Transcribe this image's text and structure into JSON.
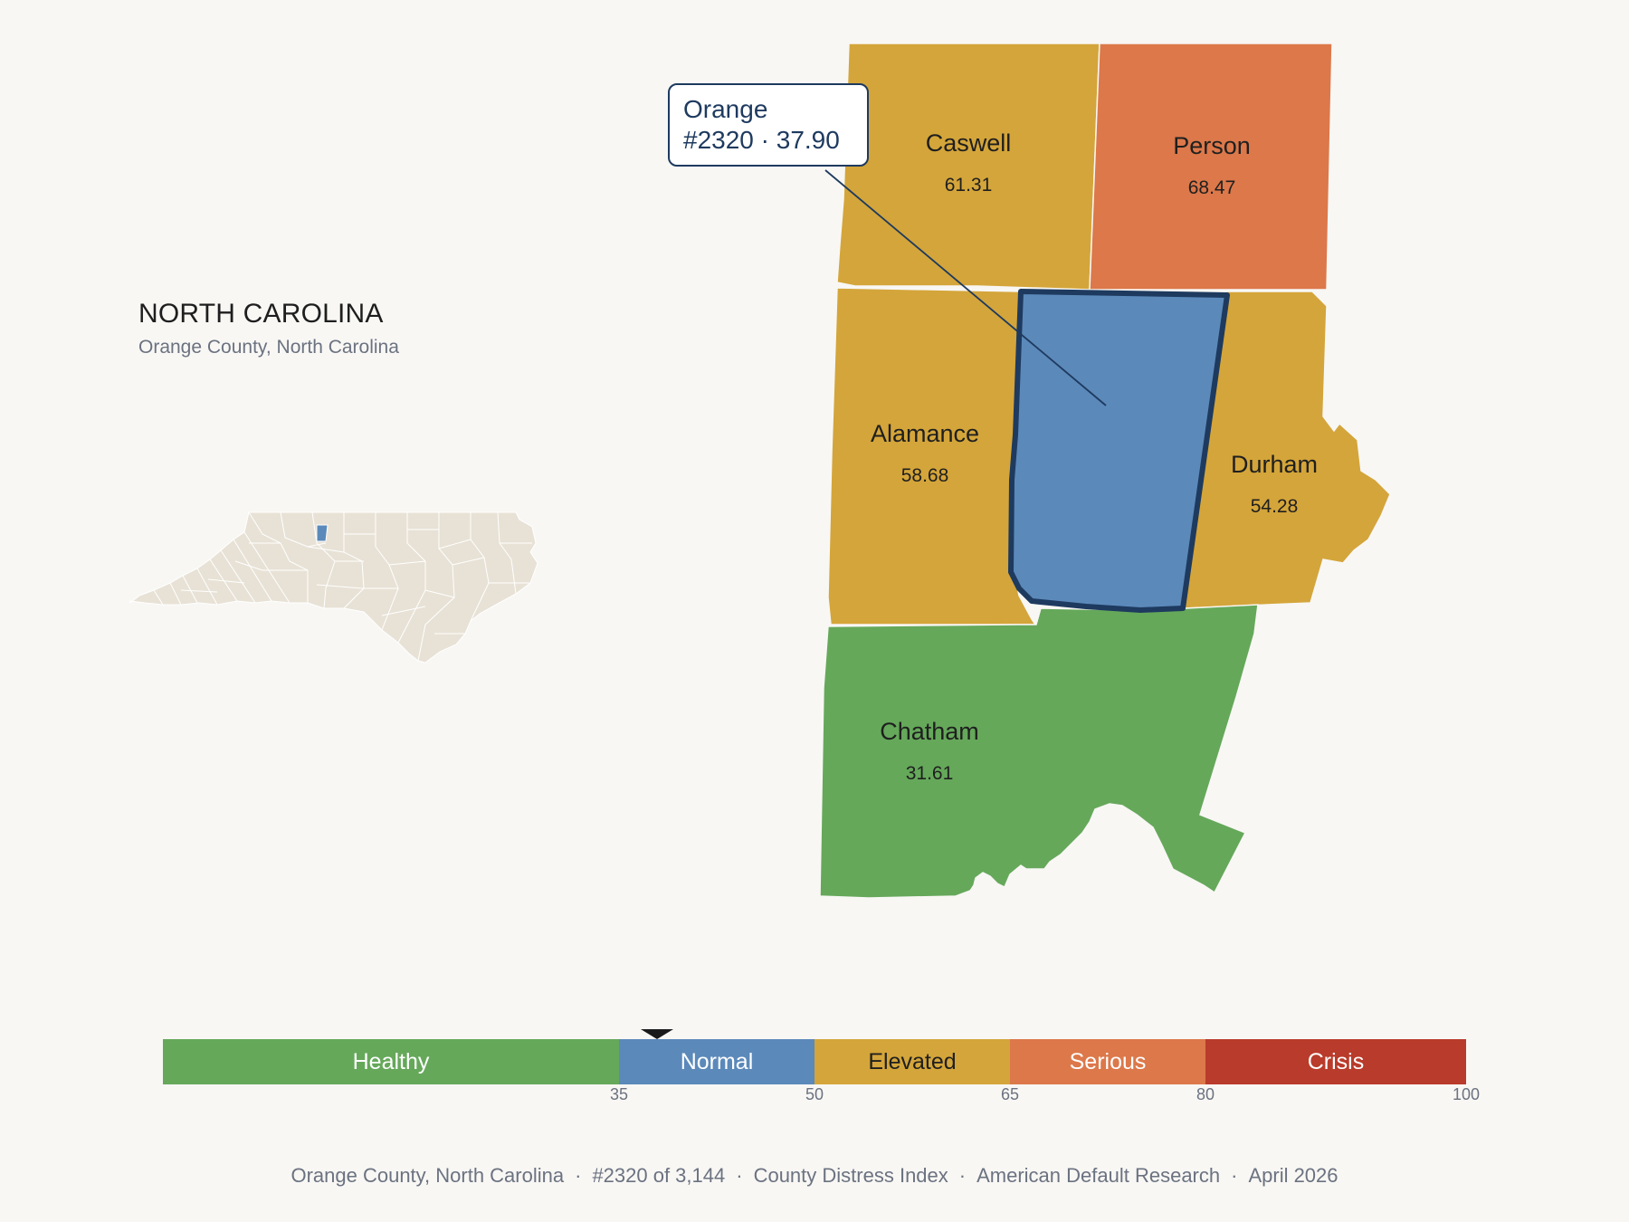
{
  "header": {
    "state_title": "NORTH CAROLINA",
    "subtitle": "Orange County, North Carolina"
  },
  "callout": {
    "name": "Orange",
    "detail": "#2320 · 37.90"
  },
  "counties": [
    {
      "name": "Caswell",
      "value": "61.31",
      "category": "Elevated"
    },
    {
      "name": "Person",
      "value": "68.47",
      "category": "Serious"
    },
    {
      "name": "Alamance",
      "value": "58.68",
      "category": "Elevated"
    },
    {
      "name": "Orange",
      "value": "37.90",
      "category": "Normal",
      "highlighted": true
    },
    {
      "name": "Durham",
      "value": "54.28",
      "category": "Elevated"
    },
    {
      "name": "Chatham",
      "value": "31.61",
      "category": "Healthy"
    }
  ],
  "scale": {
    "min": 0,
    "max": 100,
    "marker_value": 37.9,
    "segments": [
      {
        "label": "Healthy",
        "from": 0,
        "to": 35,
        "color": "#65a85a",
        "text_color": "#ffffff"
      },
      {
        "label": "Normal",
        "from": 35,
        "to": 50,
        "color": "#5b89ba",
        "text_color": "#ffffff"
      },
      {
        "label": "Elevated",
        "from": 50,
        "to": 65,
        "color": "#d4a53a",
        "text_color": "#1f1f1f"
      },
      {
        "label": "Serious",
        "from": 65,
        "to": 80,
        "color": "#dc784a",
        "text_color": "#ffffff"
      },
      {
        "label": "Crisis",
        "from": 80,
        "to": 100,
        "color": "#b93b2b",
        "text_color": "#ffffff"
      }
    ],
    "ticks": [
      "35",
      "50",
      "65",
      "80",
      "100"
    ]
  },
  "footer": {
    "county": "Orange County, North Carolina",
    "rank": "#2320 of 3,144",
    "index": "County Distress Index",
    "source": "American Default Research",
    "date": "April 2026",
    "separator": "·"
  },
  "colors": {
    "background": "#f8f7f4",
    "highlight_outline": "#1e3a5f",
    "inset_fill": "#e8e2d6",
    "inset_highlight": "#5b89ba"
  }
}
